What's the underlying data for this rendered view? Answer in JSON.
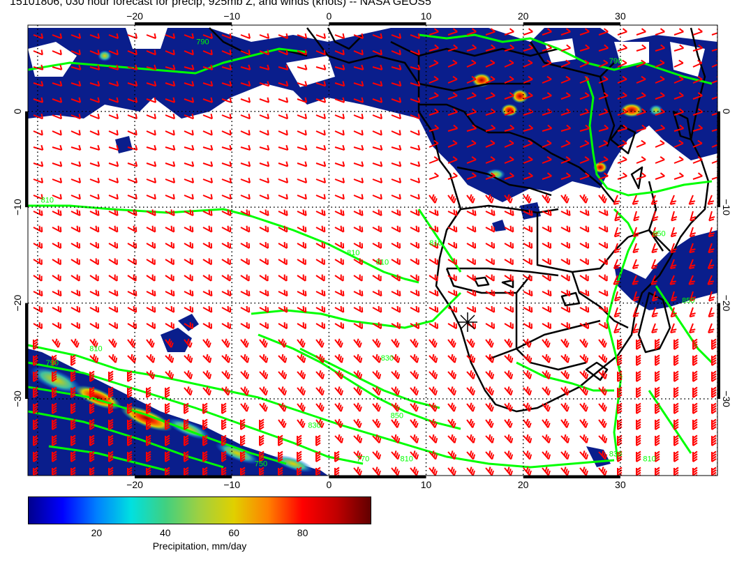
{
  "title": "15101806, 030 hour forecast for precip, 925mb Z, and winds (knots) -- NASA GEOS5",
  "map": {
    "lon_range": [
      -31,
      40
    ],
    "lat_range": [
      -38,
      9
    ],
    "lon_ticks": [
      {
        "value": -20,
        "label": "−20"
      },
      {
        "value": -10,
        "label": "−10"
      },
      {
        "value": 0,
        "label": "0"
      },
      {
        "value": 10,
        "label": "10"
      },
      {
        "value": 20,
        "label": "20"
      },
      {
        "value": 30,
        "label": "30"
      }
    ],
    "lat_ticks": [
      {
        "value": 0,
        "label": "0"
      },
      {
        "value": -10,
        "label": "−10"
      },
      {
        "value": -20,
        "label": "−20"
      },
      {
        "value": -30,
        "label": "−30"
      }
    ],
    "contour_labels": [
      {
        "text": "790",
        "lon": -13,
        "lat": 7
      },
      {
        "text": "790",
        "lon": 29.5,
        "lat": 5
      },
      {
        "text": "810",
        "lon": -29,
        "lat": -9.5
      },
      {
        "text": "810",
        "lon": 2.5,
        "lat": -15
      },
      {
        "text": "810",
        "lon": 5.5,
        "lat": -16
      },
      {
        "text": "810",
        "lon": 11,
        "lat": -14
      },
      {
        "text": "810",
        "lon": -24,
        "lat": -25
      },
      {
        "text": "790",
        "lon": -28.5,
        "lat": -26.5
      },
      {
        "text": "830",
        "lon": 6,
        "lat": -26
      },
      {
        "text": "850",
        "lon": 7,
        "lat": -32
      },
      {
        "text": "830",
        "lon": -1.5,
        "lat": -33
      },
      {
        "text": "770",
        "lon": 3.5,
        "lat": -36.5
      },
      {
        "text": "810",
        "lon": 8,
        "lat": -36.5
      },
      {
        "text": "750",
        "lon": -7,
        "lat": -37
      },
      {
        "text": "810",
        "lon": 33,
        "lat": -36.5
      },
      {
        "text": "830",
        "lon": 29.5,
        "lat": -36
      },
      {
        "text": "850",
        "lon": 37,
        "lat": -20
      },
      {
        "text": "850",
        "lon": 34,
        "lat": -13
      }
    ]
  },
  "colorbar": {
    "title": "Precipitation, mm/day",
    "range": [
      0,
      100
    ],
    "ticks": [
      20,
      40,
      60,
      80
    ],
    "colors": [
      "#00008c",
      "#0000ff",
      "#0080ff",
      "#00e0e0",
      "#40d080",
      "#a0d040",
      "#e0d000",
      "#ff8000",
      "#ff0000",
      "#c00000",
      "#600000"
    ]
  },
  "colors": {
    "precip_base": "#0a1e8c",
    "contour": "#00ff00",
    "wind_barb": "#ff0000",
    "coast": "#000000"
  }
}
